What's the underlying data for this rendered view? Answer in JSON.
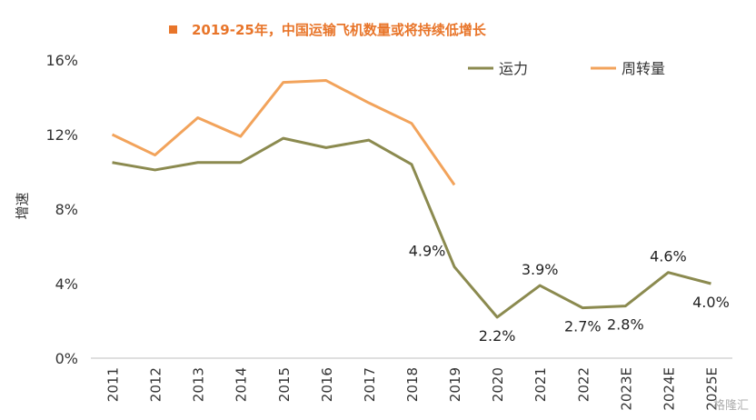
{
  "title": "2019-25年，中国运输飞机数量或将持续低增长",
  "chart_data": {
    "type": "line",
    "title": "2019-25年，中国运输飞机数量或将持续低增长",
    "xlabel": "",
    "ylabel": "增速",
    "categories": [
      "2011",
      "2012",
      "2013",
      "2014",
      "2015",
      "2016",
      "2017",
      "2018",
      "2019",
      "2020",
      "2021",
      "2022",
      "2023E",
      "2024E",
      "2025E"
    ],
    "ylim": [
      0,
      16
    ],
    "yticks": [
      "0%",
      "4%",
      "8%",
      "12%",
      "16%"
    ],
    "legend_position": "top-right",
    "series": [
      {
        "name": "运力",
        "color": "#8b8a4f",
        "values": [
          10.5,
          10.1,
          10.5,
          10.5,
          11.8,
          11.3,
          11.7,
          10.4,
          4.9,
          2.2,
          3.9,
          2.7,
          2.8,
          4.6,
          4.0
        ]
      },
      {
        "name": "周转量",
        "color": "#f2a35b",
        "values": [
          12.0,
          10.9,
          12.9,
          11.9,
          14.8,
          14.9,
          13.7,
          12.6,
          9.3,
          null,
          null,
          null,
          null,
          null,
          null
        ]
      }
    ],
    "data_labels": [
      {
        "series": 0,
        "index": 8,
        "text": "4.9%",
        "pos": "above"
      },
      {
        "series": 0,
        "index": 9,
        "text": "2.2%",
        "pos": "below"
      },
      {
        "series": 0,
        "index": 10,
        "text": "3.9%",
        "pos": "above"
      },
      {
        "series": 0,
        "index": 11,
        "text": "2.7%",
        "pos": "below"
      },
      {
        "series": 0,
        "index": 12,
        "text": "2.8%",
        "pos": "below"
      },
      {
        "series": 0,
        "index": 13,
        "text": "4.6%",
        "pos": "above"
      },
      {
        "series": 0,
        "index": 14,
        "text": "4.0%",
        "pos": "below"
      }
    ],
    "grid": false
  },
  "watermark": "格隆汇"
}
